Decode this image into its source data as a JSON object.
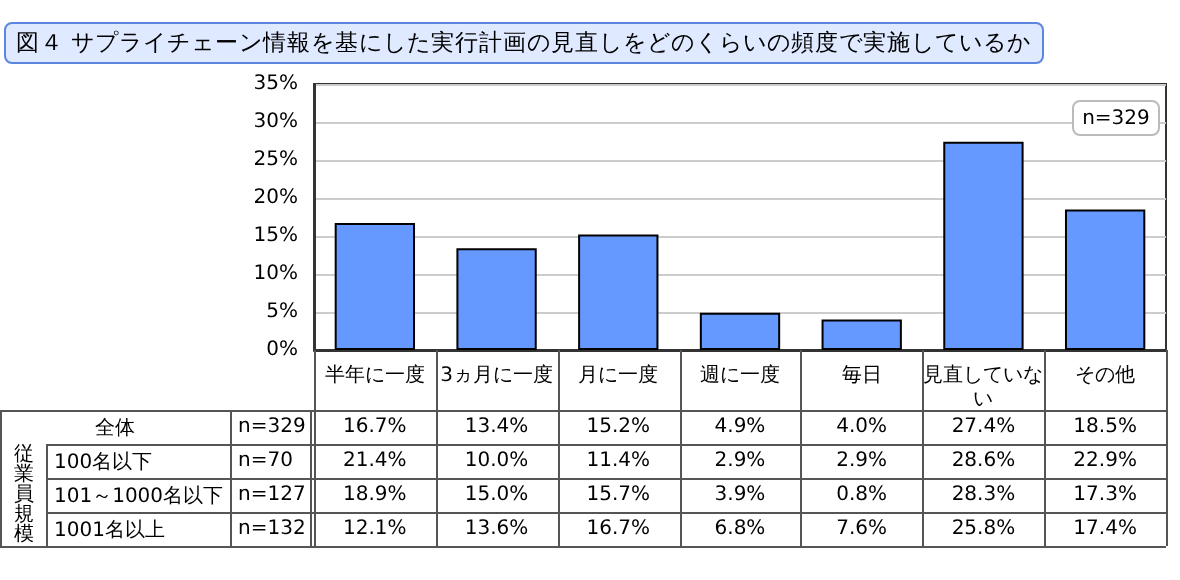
{
  "chart_data": {
    "type": "bar",
    "title": "図４ サプライチェーン情報を基にした実行計画の見直しをどのくらいの頻度で実施しているか",
    "categories": [
      "半年に一度",
      "3ヵ月に一度",
      "月に一度",
      "週に一度",
      "毎日",
      "見直していない",
      "その他"
    ],
    "values": [
      16.7,
      13.4,
      15.2,
      4.9,
      4.0,
      27.4,
      18.5
    ],
    "value_labels": [
      "16.7%",
      "13.4%",
      "15.2%",
      "4.9%",
      "4.0%",
      "27.4%",
      "18.5%"
    ],
    "color": "#6699ff",
    "ylim": [
      0,
      35
    ],
    "yticks": [
      {
        "value": 0,
        "label": "0%"
      },
      {
        "value": 5,
        "label": "5%"
      },
      {
        "value": 10,
        "label": "10%"
      },
      {
        "value": 15,
        "label": "15%"
      },
      {
        "value": 20,
        "label": "20%"
      },
      {
        "value": 25,
        "label": "25%"
      },
      {
        "value": 30,
        "label": "30%"
      },
      {
        "value": 35,
        "label": "35%"
      }
    ],
    "grid": "y",
    "annotations": [
      "n=329",
      "全体",
      "n=329",
      "従業員規模",
      "100名以下",
      "n=70",
      "21.4%",
      "10.0%",
      "11.4%",
      "2.9%",
      "2.9%",
      "28.6%",
      "22.9%",
      "101～1000名以下",
      "n=127",
      "18.9%",
      "15.0%",
      "15.7%",
      "3.9%",
      "0.8%",
      "28.3%",
      "17.3%",
      "1001名以上",
      "n=132",
      "12.1%",
      "13.6%",
      "16.7%",
      "6.8%",
      "7.6%",
      "25.8%",
      "17.4%"
    ]
  }
}
